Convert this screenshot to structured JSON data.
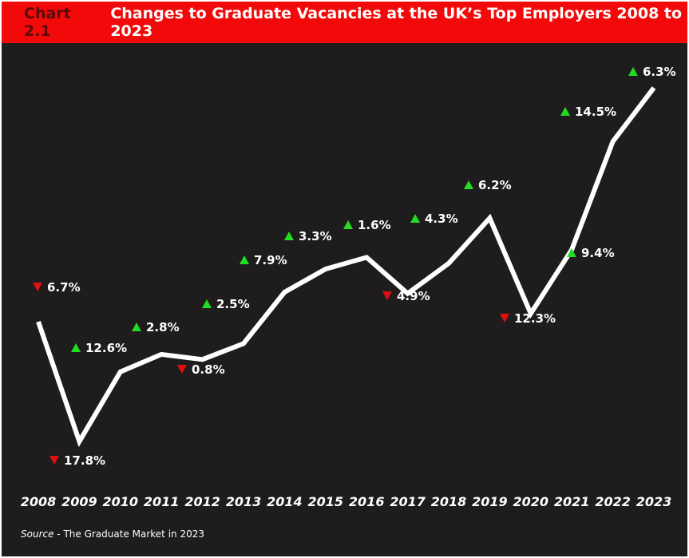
{
  "chart_data": {
    "type": "line",
    "title_number": "Chart 2.1",
    "title": "Changes to Graduate Vacancies at the UK’s Top Employers 2008 to 2023",
    "categories": [
      "2008",
      "2009",
      "2010",
      "2011",
      "2012",
      "2013",
      "2014",
      "2015",
      "2016",
      "2017",
      "2018",
      "2019",
      "2020",
      "2021",
      "2022",
      "2023"
    ],
    "annual_change_percent": [
      -6.7,
      -17.8,
      12.6,
      2.8,
      -0.8,
      2.5,
      7.9,
      3.3,
      1.6,
      -4.9,
      4.3,
      6.2,
      -12.3,
      9.4,
      14.5,
      6.3
    ],
    "labels": [
      "6.7%",
      "17.8%",
      "12.6%",
      "2.8%",
      "0.8%",
      "2.5%",
      "7.9%",
      "3.3%",
      "1.6%",
      "4.9%",
      "4.3%",
      "6.2%",
      "12.3%",
      "9.4%",
      "14.5%",
      "6.3%"
    ],
    "colors": {
      "up": "#22dd22",
      "down": "#e01010",
      "line": "#ffffff",
      "background": "#1f1c1d",
      "title_bar": "#f20a0a"
    },
    "grid": false,
    "legend": "none"
  },
  "source": {
    "prefix": "Source",
    "text": " - The Graduate Market in 2023"
  }
}
